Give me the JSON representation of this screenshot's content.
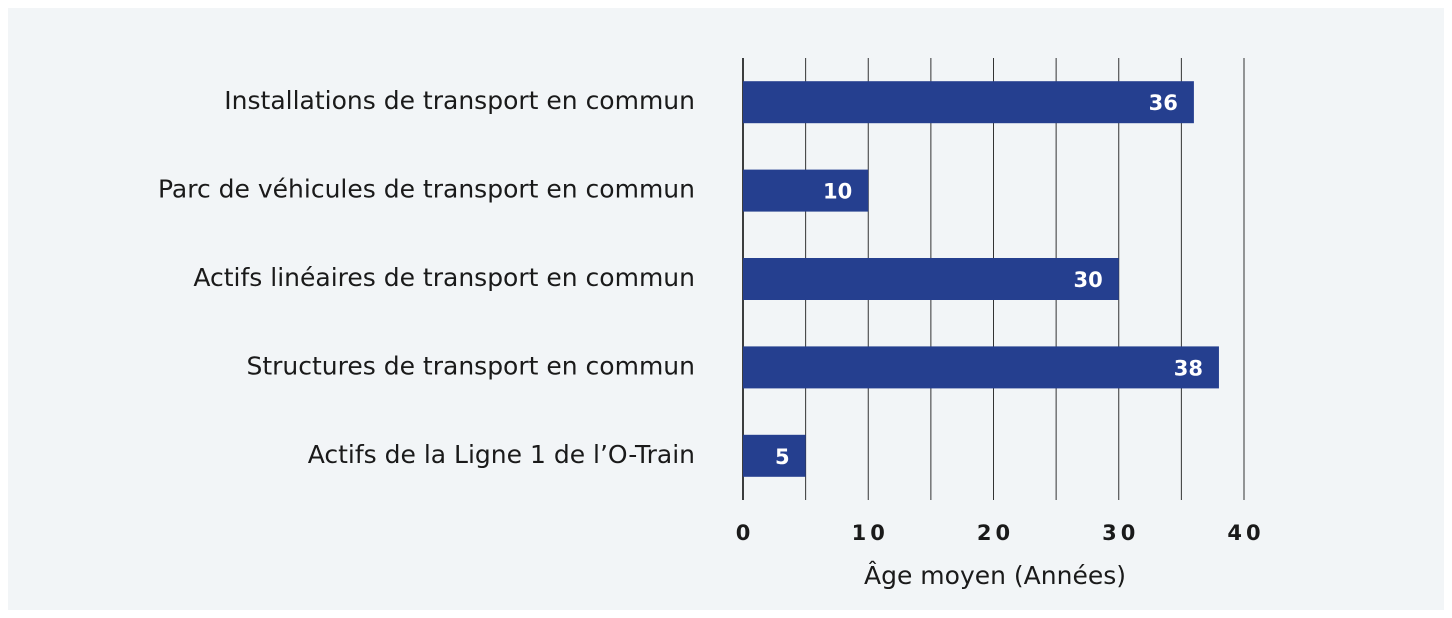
{
  "chart_data": {
    "type": "bar",
    "orientation": "horizontal",
    "categories": [
      "Installations de transport en commun",
      "Parc de véhicules de transport en commun",
      "Actifs linéaires de transport en commun",
      "Structures de transport en commun",
      "Actifs de la Ligne 1 de l’O-Train"
    ],
    "values": [
      36,
      10,
      30,
      38,
      5
    ],
    "color": "#253f8f",
    "xlabel": "Âge moyen (Années)",
    "xlim": [
      0,
      40
    ],
    "xticks": [
      0,
      10,
      20,
      30,
      40
    ],
    "x_minor_ticks": [
      5,
      15,
      25,
      35
    ],
    "grid": true
  }
}
